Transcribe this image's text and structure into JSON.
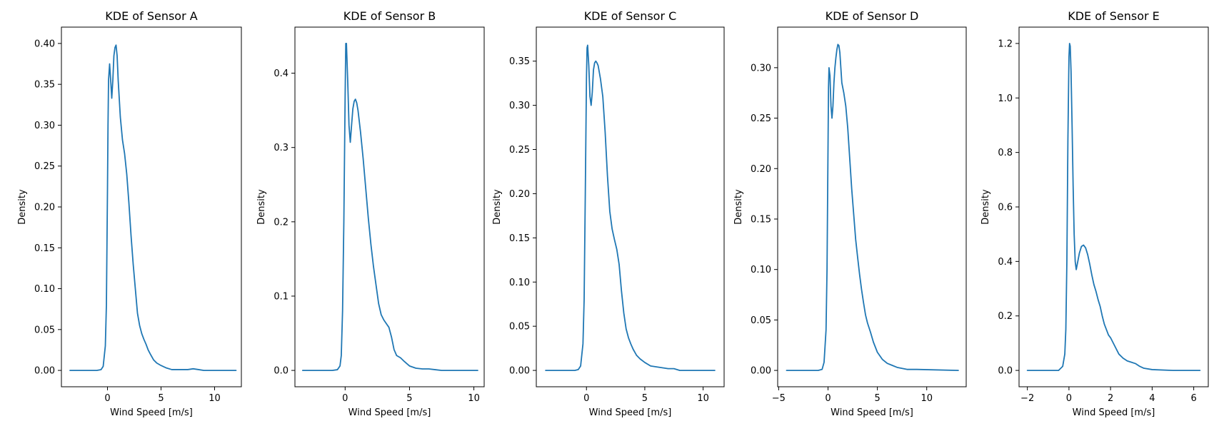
{
  "figure": {
    "line_color": "#1f77b4",
    "background": "#ffffff"
  },
  "chart_data": [
    {
      "type": "line",
      "title": "KDE of Sensor A",
      "xlabel": "Wind Speed [m/s]",
      "ylabel": "Density",
      "xlim": [
        -4.3,
        12.5
      ],
      "ylim": [
        -0.02,
        0.42
      ],
      "xticks": [
        0,
        5,
        10
      ],
      "xtick_labels": [
        "0",
        "5",
        "10"
      ],
      "yticks": [
        0.0,
        0.05,
        0.1,
        0.15,
        0.2,
        0.25,
        0.3,
        0.35,
        0.4
      ],
      "ytick_labels": [
        "0.00",
        "0.05",
        "0.10",
        "0.15",
        "0.20",
        "0.25",
        "0.30",
        "0.35",
        "0.40"
      ],
      "grid": false,
      "series": [
        {
          "x": [
            -3.5,
            -1.0,
            -0.6,
            -0.4,
            -0.2,
            -0.1,
            0.0,
            0.05,
            0.1,
            0.2,
            0.3,
            0.4,
            0.5,
            0.6,
            0.7,
            0.8,
            0.9,
            1.0,
            1.2,
            1.4,
            1.6,
            1.8,
            2.0,
            2.2,
            2.4,
            2.6,
            2.8,
            3.0,
            3.2,
            3.4,
            3.6,
            3.8,
            4.0,
            4.3,
            4.6,
            5.0,
            5.5,
            6.0,
            6.5,
            7.0,
            7.5,
            8.0,
            8.5,
            9.0,
            12.0
          ],
          "y": [
            0.0,
            0.0,
            0.001,
            0.005,
            0.03,
            0.08,
            0.22,
            0.3,
            0.355,
            0.375,
            0.355,
            0.333,
            0.355,
            0.385,
            0.395,
            0.398,
            0.385,
            0.355,
            0.31,
            0.282,
            0.265,
            0.24,
            0.205,
            0.165,
            0.13,
            0.1,
            0.07,
            0.055,
            0.045,
            0.038,
            0.032,
            0.025,
            0.02,
            0.013,
            0.009,
            0.006,
            0.003,
            0.001,
            0.001,
            0.001,
            0.001,
            0.002,
            0.001,
            0.0,
            0.0
          ]
        }
      ]
    },
    {
      "type": "line",
      "title": "KDE of Sensor B",
      "xlabel": "Wind Speed [m/s]",
      "ylabel": "Density",
      "xlim": [
        -3.9,
        10.8
      ],
      "ylim": [
        -0.022,
        0.462
      ],
      "xticks": [
        0,
        5,
        10
      ],
      "xtick_labels": [
        "0",
        "5",
        "10"
      ],
      "yticks": [
        0.0,
        0.1,
        0.2,
        0.3,
        0.4
      ],
      "ytick_labels": [
        "0.0",
        "0.1",
        "0.2",
        "0.3",
        "0.4"
      ],
      "grid": false,
      "series": [
        {
          "x": [
            -3.3,
            -1.0,
            -0.6,
            -0.4,
            -0.3,
            -0.2,
            -0.1,
            0.0,
            0.05,
            0.1,
            0.2,
            0.3,
            0.4,
            0.5,
            0.6,
            0.7,
            0.8,
            0.9,
            1.0,
            1.2,
            1.4,
            1.6,
            1.8,
            2.0,
            2.2,
            2.4,
            2.6,
            2.8,
            3.0,
            3.2,
            3.4,
            3.6,
            3.8,
            4.0,
            4.3,
            4.6,
            5.0,
            5.5,
            6.0,
            6.5,
            7.0,
            7.5,
            8.0,
            10.3
          ],
          "y": [
            0.0,
            0.0,
            0.001,
            0.006,
            0.02,
            0.08,
            0.2,
            0.37,
            0.44,
            0.44,
            0.39,
            0.33,
            0.307,
            0.33,
            0.352,
            0.362,
            0.365,
            0.36,
            0.35,
            0.32,
            0.285,
            0.245,
            0.205,
            0.17,
            0.14,
            0.115,
            0.09,
            0.075,
            0.068,
            0.063,
            0.058,
            0.045,
            0.028,
            0.02,
            0.017,
            0.012,
            0.006,
            0.003,
            0.002,
            0.002,
            0.001,
            0.0,
            0.0,
            0.0
          ]
        }
      ]
    },
    {
      "type": "line",
      "title": "KDE of Sensor C",
      "xlabel": "Wind Speed [m/s]",
      "ylabel": "Density",
      "xlim": [
        -4.3,
        11.8
      ],
      "ylim": [
        -0.0185,
        0.3885
      ],
      "xticks": [
        0,
        5,
        10
      ],
      "xtick_labels": [
        "0",
        "5",
        "10"
      ],
      "yticks": [
        0.0,
        0.05,
        0.1,
        0.15,
        0.2,
        0.25,
        0.3,
        0.35
      ],
      "ytick_labels": [
        "0.00",
        "0.05",
        "0.10",
        "0.15",
        "0.20",
        "0.25",
        "0.30",
        "0.35"
      ],
      "grid": false,
      "series": [
        {
          "x": [
            -3.5,
            -1.0,
            -0.7,
            -0.5,
            -0.3,
            -0.2,
            -0.1,
            0.0,
            0.05,
            0.1,
            0.2,
            0.3,
            0.4,
            0.5,
            0.6,
            0.7,
            0.8,
            0.9,
            1.0,
            1.2,
            1.4,
            1.6,
            1.8,
            2.0,
            2.2,
            2.4,
            2.6,
            2.8,
            3.0,
            3.2,
            3.4,
            3.6,
            3.8,
            4.0,
            4.3,
            4.6,
            5.0,
            5.5,
            6.0,
            6.5,
            7.0,
            7.5,
            8.0,
            11.0
          ],
          "y": [
            0.0,
            0.0,
            0.001,
            0.005,
            0.03,
            0.08,
            0.2,
            0.33,
            0.365,
            0.368,
            0.345,
            0.31,
            0.3,
            0.315,
            0.34,
            0.348,
            0.35,
            0.348,
            0.345,
            0.33,
            0.31,
            0.27,
            0.22,
            0.18,
            0.16,
            0.148,
            0.137,
            0.12,
            0.09,
            0.065,
            0.047,
            0.037,
            0.03,
            0.024,
            0.017,
            0.013,
            0.009,
            0.005,
            0.004,
            0.003,
            0.002,
            0.002,
            0.0,
            0.0
          ]
        }
      ]
    },
    {
      "type": "line",
      "title": "KDE of Sensor D",
      "xlabel": "Wind Speed [m/s]",
      "ylabel": "Density",
      "xlim": [
        -5.1,
        14.0
      ],
      "ylim": [
        -0.0162,
        0.3402
      ],
      "xticks": [
        -5,
        0,
        5,
        10
      ],
      "xtick_labels": [
        "−5",
        "0",
        "5",
        "10"
      ],
      "yticks": [
        0.0,
        0.05,
        0.1,
        0.15,
        0.2,
        0.25,
        0.3
      ],
      "ytick_labels": [
        "0.00",
        "0.05",
        "0.10",
        "0.15",
        "0.20",
        "0.25",
        "0.30"
      ],
      "grid": false,
      "series": [
        {
          "x": [
            -4.2,
            -1.0,
            -0.6,
            -0.4,
            -0.2,
            -0.1,
            0.0,
            0.05,
            0.1,
            0.2,
            0.3,
            0.4,
            0.5,
            0.6,
            0.7,
            0.8,
            0.9,
            1.0,
            1.1,
            1.2,
            1.3,
            1.4,
            1.6,
            1.8,
            2.0,
            2.2,
            2.4,
            2.6,
            2.8,
            3.0,
            3.2,
            3.4,
            3.6,
            3.8,
            4.0,
            4.3,
            4.6,
            5.0,
            5.5,
            6.0,
            6.5,
            7.0,
            7.5,
            8.0,
            9.0,
            13.2
          ],
          "y": [
            0.0,
            0.0,
            0.001,
            0.008,
            0.04,
            0.1,
            0.22,
            0.28,
            0.3,
            0.292,
            0.262,
            0.25,
            0.262,
            0.285,
            0.3,
            0.31,
            0.318,
            0.323,
            0.322,
            0.315,
            0.3,
            0.285,
            0.275,
            0.262,
            0.24,
            0.21,
            0.18,
            0.155,
            0.13,
            0.112,
            0.095,
            0.08,
            0.067,
            0.055,
            0.047,
            0.038,
            0.028,
            0.018,
            0.011,
            0.007,
            0.005,
            0.003,
            0.002,
            0.001,
            0.001,
            0.0
          ]
        }
      ]
    },
    {
      "type": "line",
      "title": "KDE of Sensor E",
      "xlabel": "Wind Speed [m/s]",
      "ylabel": "Density",
      "xlim": [
        -2.4,
        6.7
      ],
      "ylim": [
        -0.06,
        1.26
      ],
      "xticks": [
        -2,
        0,
        2,
        4,
        6
      ],
      "xtick_labels": [
        "−2",
        "0",
        "2",
        "4",
        "6"
      ],
      "yticks": [
        0.0,
        0.2,
        0.4,
        0.6,
        0.8,
        1.0,
        1.2
      ],
      "ytick_labels": [
        "0.0",
        "0.2",
        "0.4",
        "0.6",
        "0.8",
        "1.0",
        "1.2"
      ],
      "grid": false,
      "series": [
        {
          "x": [
            -2.0,
            -0.5,
            -0.3,
            -0.2,
            -0.15,
            -0.1,
            -0.05,
            0.0,
            0.03,
            0.06,
            0.1,
            0.15,
            0.2,
            0.25,
            0.3,
            0.35,
            0.4,
            0.5,
            0.6,
            0.7,
            0.8,
            0.9,
            1.0,
            1.1,
            1.2,
            1.3,
            1.4,
            1.5,
            1.6,
            1.7,
            1.8,
            1.9,
            2.0,
            2.2,
            2.4,
            2.6,
            2.8,
            3.0,
            3.2,
            3.4,
            3.6,
            4.0,
            5.0,
            6.3
          ],
          "y": [
            0.0,
            0.0,
            0.015,
            0.06,
            0.15,
            0.4,
            0.85,
            1.15,
            1.2,
            1.19,
            1.1,
            0.9,
            0.68,
            0.5,
            0.4,
            0.37,
            0.39,
            0.43,
            0.455,
            0.46,
            0.45,
            0.425,
            0.39,
            0.35,
            0.315,
            0.29,
            0.26,
            0.235,
            0.2,
            0.17,
            0.15,
            0.13,
            0.12,
            0.09,
            0.06,
            0.045,
            0.035,
            0.03,
            0.025,
            0.015,
            0.008,
            0.003,
            0.0,
            0.0
          ]
        }
      ]
    }
  ]
}
